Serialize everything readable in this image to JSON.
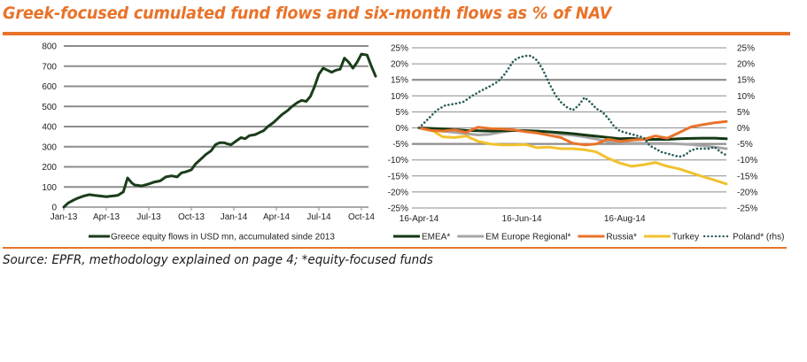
{
  "header": {
    "title": "Greek-focused cumulated fund flows and six-month flows as % of NAV"
  },
  "footer": {
    "source": "Source: EPFR, methodology explained on page 4; *equity-focused funds"
  },
  "colors": {
    "accent": "#e8732a",
    "greece": "#1a3d1a",
    "emea": "#143814",
    "em_europe": "#a6a6a6",
    "russia": "#e8732a",
    "turkey": "#f2c12e",
    "poland": "#2a5c5a",
    "grid": "#8c8c8c"
  },
  "chart_data": [
    {
      "type": "line",
      "title": "",
      "xlabel": "",
      "ylabel": "",
      "ylim": [
        0,
        800
      ],
      "yticks": [
        0,
        100,
        200,
        300,
        400,
        500,
        600,
        700,
        800
      ],
      "ytick_labels": [
        "0",
        "100",
        "200",
        "300",
        "400",
        "500",
        "600",
        "700",
        "800"
      ],
      "xtick_labels": [
        "Jan-13",
        "Apr-13",
        "Jul-13",
        "Oct-13",
        "Jan-14",
        "Apr-14",
        "Jul-14",
        "Oct-14"
      ],
      "xlim_months": [
        0,
        22.2
      ],
      "grid": true,
      "legend_position": "bottom",
      "series": [
        {
          "name": "Greece equity flows in USD mn, accumulated sinde 2013",
          "color_key": "greece",
          "style": "solid",
          "x_months": [
            0,
            0.3,
            0.7,
            1.0,
            1.4,
            1.8,
            2.2,
            2.6,
            3.0,
            3.4,
            3.8,
            4.2,
            4.5,
            4.8,
            5.0,
            5.2,
            5.5,
            6.0,
            6.4,
            6.8,
            7.2,
            7.6,
            8.0,
            8.3,
            8.6,
            9.0,
            9.3,
            9.7,
            10.0,
            10.4,
            10.7,
            11.0,
            11.3,
            11.5,
            11.8,
            12.2,
            12.5,
            12.8,
            13.1,
            13.5,
            13.8,
            14.1,
            14.4,
            14.8,
            15.1,
            15.4,
            15.8,
            16.1,
            16.5,
            16.8,
            17.1,
            17.4,
            17.7,
            18.0,
            18.3,
            18.6,
            18.9,
            19.2,
            19.5,
            19.8,
            20.1,
            20.4,
            20.7,
            21.0,
            21.4,
            21.7,
            22.0
          ],
          "values": [
            0,
            20,
            35,
            45,
            55,
            62,
            58,
            55,
            52,
            55,
            58,
            75,
            145,
            120,
            110,
            108,
            105,
            115,
            125,
            130,
            150,
            155,
            150,
            170,
            175,
            185,
            215,
            240,
            260,
            280,
            310,
            320,
            320,
            315,
            310,
            330,
            345,
            340,
            355,
            360,
            370,
            380,
            400,
            420,
            440,
            460,
            480,
            500,
            520,
            530,
            525,
            550,
            600,
            660,
            690,
            680,
            670,
            680,
            685,
            740,
            720,
            690,
            720,
            760,
            755,
            700,
            650
          ]
        }
      ]
    },
    {
      "type": "line",
      "title": "",
      "xlabel": "",
      "ylabel": "",
      "ylim": [
        -25,
        25
      ],
      "ylim_right": [
        -25,
        25
      ],
      "yticks": [
        25,
        20,
        15,
        10,
        5,
        0,
        -5,
        -10,
        -15,
        -20,
        -25
      ],
      "ytick_labels": [
        "25%",
        "20%",
        "15%",
        "10%",
        "5%",
        "0%",
        "-5%",
        "-10%",
        "-15%",
        "-20%",
        "-25%"
      ],
      "ytick_labels_right": [
        "25%",
        "20%",
        "15%",
        "10%",
        "5%",
        "0%",
        "-5%",
        "-10%",
        "-15%",
        "-20%",
        "-25%"
      ],
      "xtick_labels": [
        "16-Apr-14",
        "16-Jun-14",
        "16-Aug-14"
      ],
      "xtick_weeks": [
        0,
        8.7,
        17.4
      ],
      "xlim_weeks": [
        0,
        26
      ],
      "grid": true,
      "legend_position": "bottom",
      "series": [
        {
          "name": "EMEA*",
          "color_key": "emea",
          "style": "solid",
          "x_weeks": [
            0,
            2,
            4,
            6,
            8,
            10,
            12,
            13,
            14,
            15,
            16,
            17,
            18,
            19,
            20,
            21,
            22,
            23,
            24,
            25,
            26
          ],
          "values": [
            0,
            -0.3,
            -0.8,
            -1.0,
            -0.8,
            -1.0,
            -1.5,
            -1.8,
            -2.2,
            -2.6,
            -3.0,
            -3.4,
            -3.3,
            -3.6,
            -3.6,
            -3.6,
            -3.4,
            -3.3,
            -3.2,
            -3.2,
            -3.4
          ]
        },
        {
          "name": "EM Europe Regional*",
          "color_key": "em_europe",
          "style": "solid",
          "x_weeks": [
            0,
            2,
            4,
            5,
            6,
            7,
            8,
            9,
            10,
            11,
            12,
            13,
            14,
            15,
            16,
            17,
            18,
            19,
            20,
            21,
            22,
            23,
            24,
            25,
            26
          ],
          "values": [
            0,
            -1.0,
            -1.8,
            -2.2,
            -2.0,
            -1.3,
            -0.8,
            -0.8,
            -1.0,
            -1.3,
            -2.0,
            -2.3,
            -2.8,
            -3.5,
            -4.3,
            -4.6,
            -4.8,
            -4.8,
            -4.8,
            -4.8,
            -5.0,
            -5.2,
            -5.6,
            -6.0,
            -6.5
          ]
        },
        {
          "name": "Russia*",
          "color_key": "russia",
          "style": "solid",
          "x_weeks": [
            0,
            1,
            2,
            3,
            4,
            4.5,
            5,
            6,
            7,
            8,
            9,
            10,
            11,
            12,
            13,
            14,
            15,
            16,
            17,
            18,
            19,
            20,
            21,
            22,
            23,
            24,
            25,
            26
          ],
          "values": [
            0,
            -0.8,
            -1.0,
            -0.6,
            -1.4,
            -0.5,
            0.2,
            -0.2,
            -0.3,
            -0.6,
            -1.2,
            -1.6,
            -2.3,
            -3.0,
            -4.8,
            -5.3,
            -5.0,
            -3.5,
            -4.2,
            -3.8,
            -3.6,
            -2.5,
            -3.2,
            -1.5,
            0.3,
            1.0,
            1.6,
            2.0
          ]
        },
        {
          "name": "Turkey",
          "color_key": "turkey",
          "style": "solid",
          "x_weeks": [
            0,
            1,
            2,
            3,
            4,
            5,
            6,
            7,
            8,
            9,
            10,
            11,
            12,
            13,
            14,
            15,
            16,
            17,
            18,
            19,
            20,
            21,
            22,
            23,
            24,
            25,
            26
          ],
          "values": [
            0,
            -0.5,
            -2.8,
            -3.0,
            -2.5,
            -4.2,
            -5.0,
            -5.3,
            -5.3,
            -5.2,
            -6.2,
            -6.0,
            -6.5,
            -6.5,
            -6.8,
            -7.5,
            -9.5,
            -11.0,
            -12.0,
            -11.5,
            -10.8,
            -12.0,
            -12.8,
            -14.0,
            -15.2,
            -16.3,
            -17.5
          ]
        },
        {
          "name": "Poland* (rhs)",
          "color_key": "poland",
          "style": "dotted",
          "axis": "right",
          "x_weeks": [
            0,
            0.7,
            1.5,
            2.2,
            3.0,
            3.7,
            4.5,
            5.2,
            6.0,
            6.7,
            7.3,
            8.0,
            8.5,
            9.0,
            9.5,
            10.0,
            10.5,
            11.0,
            11.5,
            12.0,
            12.5,
            13.0,
            13.5,
            14.0,
            14.5,
            15.0,
            15.5,
            16.0,
            16.5,
            17.0,
            17.5,
            18.0,
            18.5,
            19.0,
            19.5,
            20.0,
            20.5,
            21.0,
            21.5,
            22.0,
            22.5,
            23.0,
            23.5,
            24.0,
            24.5,
            25.0,
            25.5,
            26.0
          ],
          "values": [
            0,
            2.5,
            5.5,
            7.0,
            7.5,
            8.0,
            10.0,
            11.5,
            13.0,
            14.5,
            17.0,
            21.0,
            22.0,
            22.5,
            22.5,
            21.0,
            18.0,
            14.0,
            10.5,
            8.0,
            6.5,
            5.5,
            7.0,
            9.5,
            8.0,
            6.0,
            5.0,
            3.0,
            0.5,
            -1.0,
            -1.5,
            -2.0,
            -2.5,
            -3.0,
            -5.5,
            -6.5,
            -7.5,
            -8.0,
            -8.5,
            -9.0,
            -8.5,
            -7.0,
            -6.5,
            -6.5,
            -6.5,
            -6.0,
            -7.5,
            -8.5
          ]
        }
      ]
    }
  ]
}
